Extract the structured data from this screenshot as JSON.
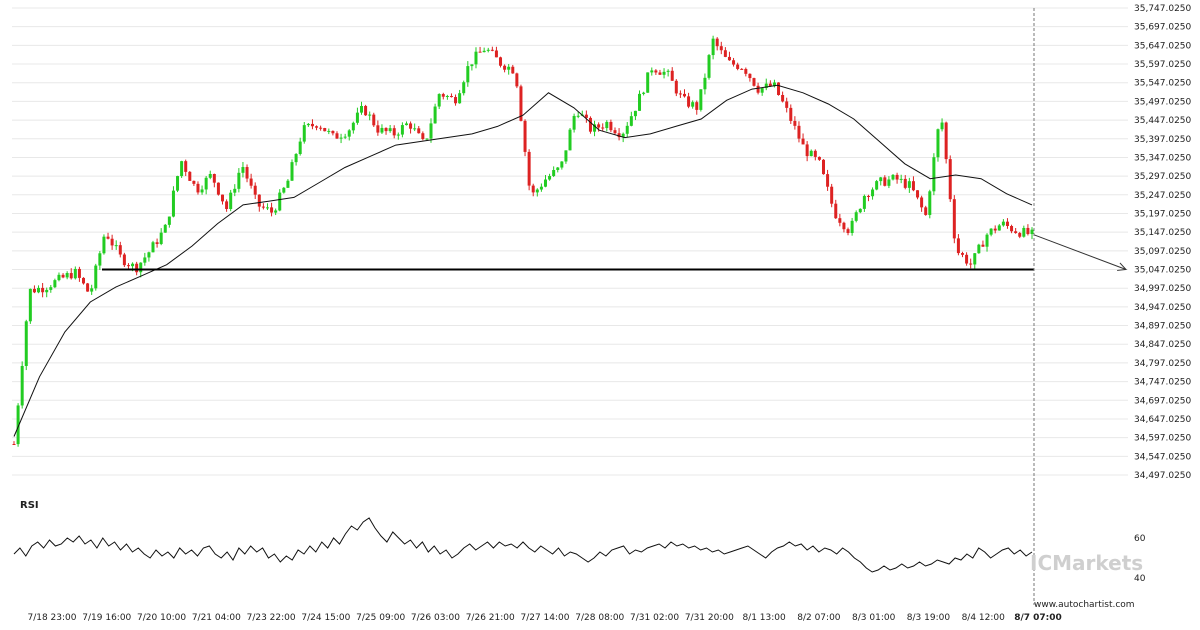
{
  "chart_data": {
    "type": "candlestick",
    "title": "",
    "colors": {
      "up": "#22cc22",
      "down": "#dd2222",
      "ma": "#111111",
      "support": "#000000",
      "grid": "#e8e8e8"
    },
    "y_ticks": [
      "35,747.0250",
      "35,697.0250",
      "35,647.0250",
      "35,597.0250",
      "35,547.0250",
      "35,497.0250",
      "35,447.0250",
      "35,397.0250",
      "35,347.0250",
      "35,297.0250",
      "35,247.0250",
      "35,197.0250",
      "35,147.0250",
      "35,097.0250",
      "35,047.0250",
      "34,997.0250",
      "34,947.0250",
      "34,897.0250",
      "34,847.0250",
      "34,797.0250",
      "34,747.0250",
      "34,697.0250",
      "34,647.0250",
      "34,597.0250",
      "34,547.0250",
      "34,497.0250"
    ],
    "ylim": [
      34497.025,
      35747.025
    ],
    "x_ticks": [
      "7/18 23:00",
      "7/19 16:00",
      "7/20 10:00",
      "7/21 04:00",
      "7/23 22:00",
      "7/24 15:00",
      "7/25 09:00",
      "7/26 03:00",
      "7/26 21:00",
      "7/27 14:00",
      "7/28 08:00",
      "7/31 02:00",
      "7/31 20:00",
      "8/1 13:00",
      "8/2 07:00",
      "8/3 01:00",
      "8/3 19:00",
      "8/4 12:00",
      "8/7 07:00"
    ],
    "price_path": [
      34580,
      34990,
      35000,
      35020,
      35040,
      34980,
      35150,
      35080,
      35050,
      35100,
      35160,
      35340,
      35260,
      35300,
      35210,
      35330,
      35220,
      35200,
      35280,
      35420,
      35440,
      35400,
      35420,
      35480,
      35420,
      35410,
      35440,
      35380,
      35520,
      35500,
      35600,
      35640,
      35600,
      35580,
      35240,
      35290,
      35320,
      35480,
      35420,
      35440,
      35410,
      35490,
      35590,
      35570,
      35500,
      35480,
      35660,
      35600,
      35590,
      35530,
      35540,
      35460,
      35370,
      35330,
      35200,
      35150,
      35250,
      35280,
      35290,
      35270,
      35190,
      35470,
      35100,
      35060,
      35140,
      35170,
      35150,
      35140
    ],
    "ma_path": [
      34600,
      34760,
      34880,
      34960,
      35000,
      35030,
      35060,
      35110,
      35170,
      35220,
      35230,
      35240,
      35280,
      35320,
      35350,
      35380,
      35390,
      35400,
      35410,
      35430,
      35460,
      35520,
      35480,
      35420,
      35400,
      35410,
      35430,
      35450,
      35500,
      35530,
      35540,
      35520,
      35490,
      35450,
      35390,
      35330,
      35290,
      35300,
      35290,
      35250,
      35220
    ],
    "support_level": 35047.025,
    "forecast_end": 35047.025,
    "rsi": {
      "label": "RSI",
      "ticks": [
        "60",
        "40"
      ],
      "ylim": [
        30,
        80
      ],
      "values": [
        52,
        55,
        51,
        56,
        58,
        55,
        59,
        56,
        57,
        60,
        58,
        61,
        57,
        59,
        55,
        60,
        56,
        58,
        54,
        57,
        53,
        55,
        52,
        50,
        54,
        51,
        53,
        50,
        55,
        52,
        54,
        51,
        55,
        56,
        52,
        50,
        53,
        49,
        55,
        52,
        56,
        53,
        55,
        50,
        52,
        48,
        51,
        49,
        54,
        52,
        56,
        53,
        58,
        55,
        60,
        57,
        62,
        66,
        64,
        68,
        70,
        65,
        61,
        58,
        63,
        60,
        57,
        59,
        55,
        58,
        53,
        56,
        52,
        54,
        50,
        52,
        55,
        57,
        54,
        56,
        58,
        55,
        58,
        56,
        57,
        55,
        58,
        55,
        53,
        56,
        54,
        52,
        55,
        51,
        53,
        52,
        50,
        48,
        50,
        53,
        51,
        54,
        55,
        56,
        52,
        54,
        53,
        55,
        56,
        57,
        55,
        58,
        56,
        57,
        55,
        56,
        54,
        55,
        53,
        54,
        52,
        53,
        54,
        55,
        56,
        54,
        52,
        50,
        53,
        55,
        56,
        58,
        56,
        57,
        54,
        56,
        53,
        55,
        54,
        52,
        55,
        53,
        50,
        48,
        45,
        43,
        44,
        46,
        44,
        45,
        47,
        45,
        46,
        48,
        46,
        47,
        49,
        48,
        47,
        50,
        49,
        52,
        50,
        55,
        53,
        50,
        52,
        54,
        55,
        52,
        54,
        51,
        53
      ]
    },
    "watermark": "ICMarkets",
    "source": "www.autochartist.com"
  }
}
